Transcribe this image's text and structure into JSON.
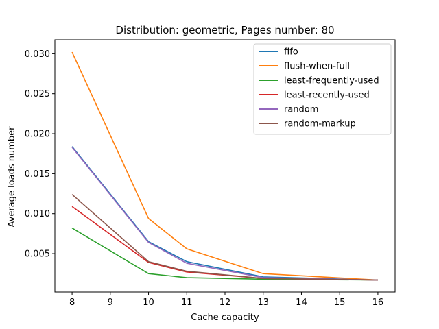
{
  "chart_data": {
    "type": "line",
    "title": "Distribution: geometric, Pages number: 80",
    "xlabel": "Cache capacity",
    "ylabel": "Average loads number",
    "xlim": [
      7.55,
      16.45
    ],
    "ylim": [
      0.000205,
      0.031745
    ],
    "x_ticks": [
      8,
      9,
      10,
      11,
      12,
      13,
      14,
      15,
      16
    ],
    "y_ticks": [
      0.005,
      0.01,
      0.015,
      0.02,
      0.025,
      0.03
    ],
    "y_tick_labels": [
      "0.005",
      "0.010",
      "0.015",
      "0.020",
      "0.025",
      "0.030"
    ],
    "grid": false,
    "legend_position": "top-right",
    "x": [
      8,
      10,
      11,
      13,
      16
    ],
    "series": [
      {
        "name": "fifo",
        "color": "#1f77b4",
        "values": [
          0.0184,
          0.0065,
          0.004,
          0.0021,
          0.0017
        ]
      },
      {
        "name": "flush-when-full",
        "color": "#ff7f0e",
        "values": [
          0.0302,
          0.0094,
          0.0056,
          0.0025,
          0.0017
        ]
      },
      {
        "name": "least-frequently-used",
        "color": "#2ca02c",
        "values": [
          0.0082,
          0.0025,
          0.002,
          0.0018,
          0.0017
        ]
      },
      {
        "name": "least-recently-used",
        "color": "#d62728",
        "values": [
          0.0109,
          0.0039,
          0.0027,
          0.0019,
          0.0017
        ]
      },
      {
        "name": "random",
        "color": "#9467bd",
        "values": [
          0.0183,
          0.0064,
          0.0038,
          0.002,
          0.0017
        ]
      },
      {
        "name": "random-markup",
        "color": "#8c564b",
        "values": [
          0.0124,
          0.004,
          0.0028,
          0.0019,
          0.0017
        ]
      }
    ]
  }
}
